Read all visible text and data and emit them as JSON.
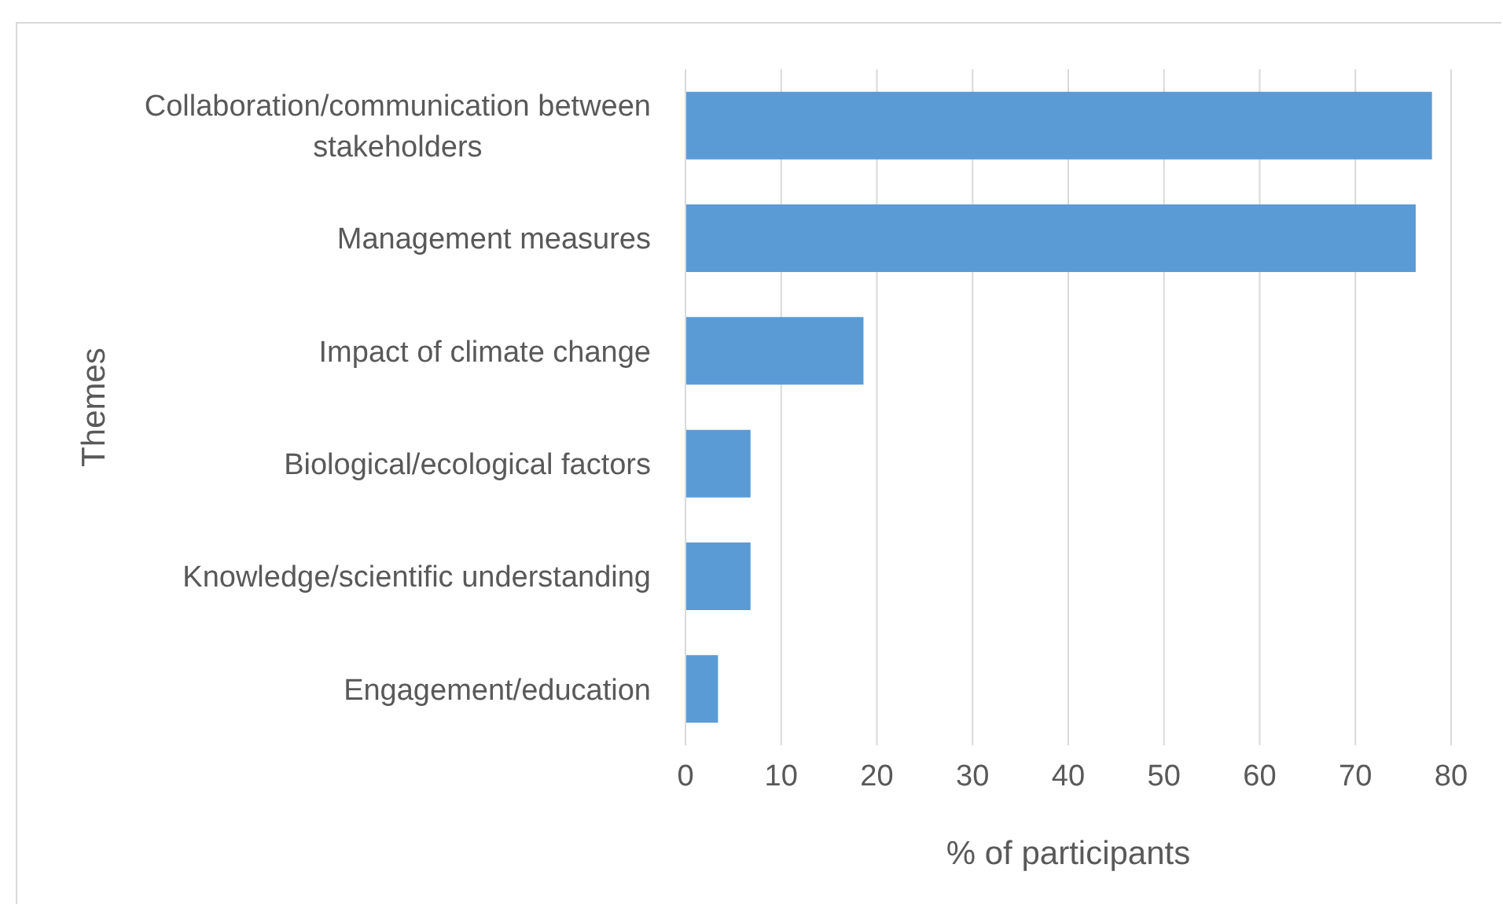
{
  "chart_data": {
    "type": "bar",
    "orientation": "horizontal",
    "categories": [
      "Collaboration/communication between stakeholders",
      "Management measures",
      "Impact of climate change",
      "Biological/ecological factors",
      "Knowledge/scientific understanding",
      "Engagement/education"
    ],
    "values": [
      78,
      76.3,
      18.6,
      6.8,
      6.8,
      3.4
    ],
    "color": "#5b9bd5",
    "xlabel": "% of participants",
    "ylabel": "Themes",
    "xlim": [
      0,
      80
    ],
    "xticks": [
      0,
      10,
      20,
      30,
      40,
      50,
      60,
      70,
      80
    ],
    "grid": "x"
  }
}
